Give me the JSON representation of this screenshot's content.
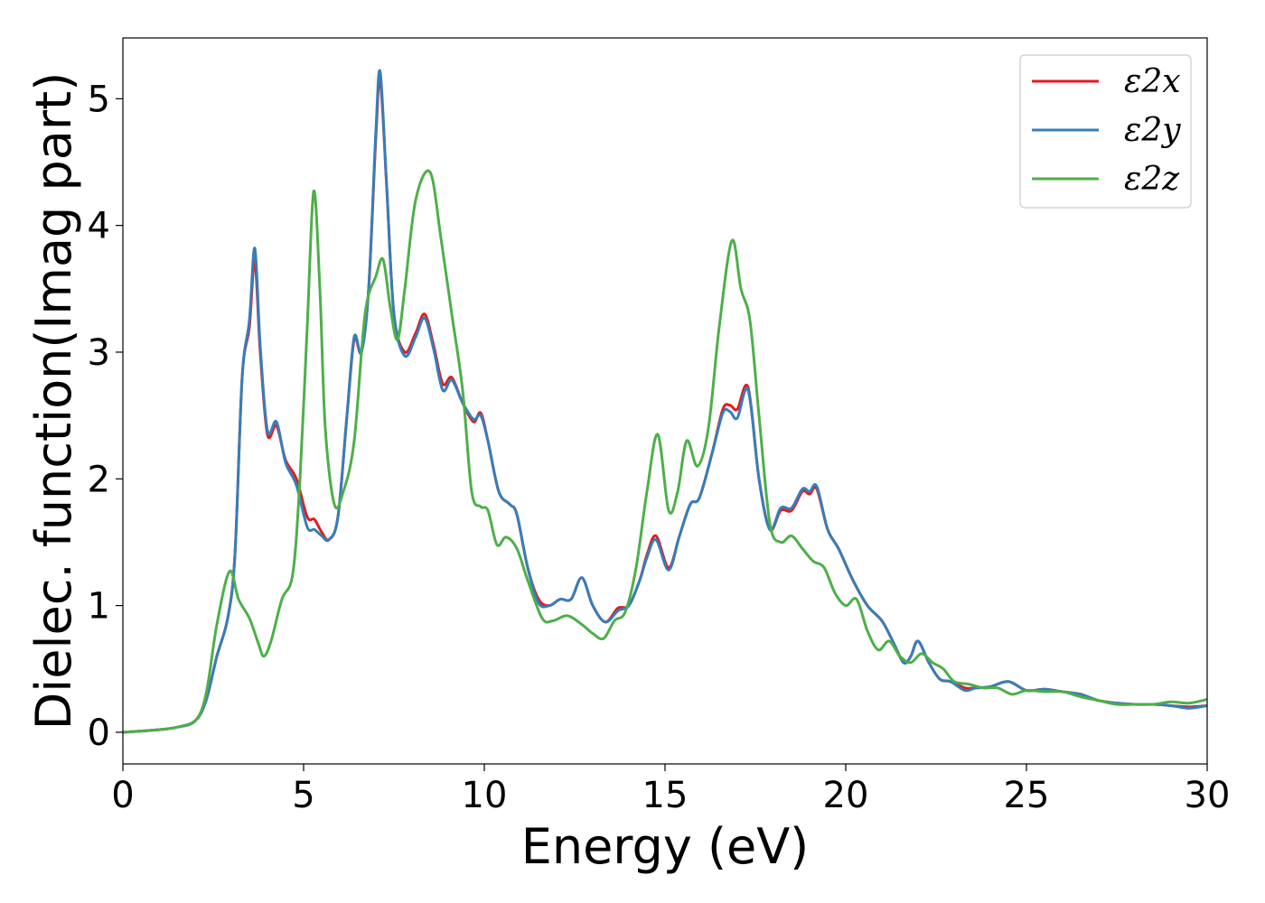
{
  "chart_data": {
    "type": "line",
    "xlabel": "Energy (eV)",
    "ylabel": "Dielec. function(Imag part)",
    "xlim": [
      0,
      30
    ],
    "ylim": [
      -0.25,
      5.48
    ],
    "xticks": [
      0,
      5,
      10,
      15,
      20,
      25,
      30
    ],
    "yticks": [
      0,
      1,
      2,
      3,
      4,
      5
    ],
    "grid": false,
    "legend_position": "top-right",
    "series": [
      {
        "name": "ε2x",
        "color": "#e41a1c",
        "points": [
          [
            0,
            0
          ],
          [
            1,
            0.02
          ],
          [
            1.5,
            0.04
          ],
          [
            2,
            0.09
          ],
          [
            2.3,
            0.25
          ],
          [
            2.6,
            0.6
          ],
          [
            2.9,
            0.9
          ],
          [
            3.1,
            1.4
          ],
          [
            3.3,
            2.8
          ],
          [
            3.5,
            3.2
          ],
          [
            3.65,
            3.72
          ],
          [
            3.8,
            3.0
          ],
          [
            4.0,
            2.35
          ],
          [
            4.25,
            2.42
          ],
          [
            4.5,
            2.15
          ],
          [
            4.8,
            2.0
          ],
          [
            5.1,
            1.7
          ],
          [
            5.3,
            1.68
          ],
          [
            5.5,
            1.58
          ],
          [
            5.7,
            1.52
          ],
          [
            5.95,
            1.7
          ],
          [
            6.2,
            2.5
          ],
          [
            6.4,
            3.1
          ],
          [
            6.6,
            3.0
          ],
          [
            6.8,
            3.5
          ],
          [
            7.0,
            4.7
          ],
          [
            7.12,
            5.15
          ],
          [
            7.3,
            4.3
          ],
          [
            7.5,
            3.3
          ],
          [
            7.8,
            3.0
          ],
          [
            8.1,
            3.15
          ],
          [
            8.35,
            3.3
          ],
          [
            8.6,
            3.05
          ],
          [
            8.85,
            2.75
          ],
          [
            9.1,
            2.8
          ],
          [
            9.4,
            2.6
          ],
          [
            9.7,
            2.45
          ],
          [
            9.9,
            2.52
          ],
          [
            10.1,
            2.3
          ],
          [
            10.4,
            1.9
          ],
          [
            10.7,
            1.8
          ],
          [
            10.9,
            1.72
          ],
          [
            11.2,
            1.3
          ],
          [
            11.5,
            1.05
          ],
          [
            11.8,
            1.0
          ],
          [
            12.1,
            1.05
          ],
          [
            12.4,
            1.05
          ],
          [
            12.7,
            1.22
          ],
          [
            13.0,
            1.0
          ],
          [
            13.35,
            0.87
          ],
          [
            13.7,
            0.98
          ],
          [
            14.0,
            1.0
          ],
          [
            14.3,
            1.2
          ],
          [
            14.5,
            1.4
          ],
          [
            14.75,
            1.55
          ],
          [
            15.1,
            1.3
          ],
          [
            15.4,
            1.55
          ],
          [
            15.7,
            1.8
          ],
          [
            15.95,
            1.85
          ],
          [
            16.3,
            2.2
          ],
          [
            16.6,
            2.55
          ],
          [
            16.8,
            2.58
          ],
          [
            17.0,
            2.55
          ],
          [
            17.3,
            2.72
          ],
          [
            17.6,
            2.0
          ],
          [
            17.9,
            1.6
          ],
          [
            18.2,
            1.75
          ],
          [
            18.5,
            1.75
          ],
          [
            18.8,
            1.9
          ],
          [
            19.0,
            1.88
          ],
          [
            19.2,
            1.92
          ],
          [
            19.5,
            1.6
          ],
          [
            19.8,
            1.45
          ],
          [
            20.2,
            1.2
          ],
          [
            20.6,
            1.0
          ],
          [
            21.0,
            0.88
          ],
          [
            21.3,
            0.72
          ],
          [
            21.6,
            0.55
          ],
          [
            21.8,
            0.6
          ],
          [
            22.0,
            0.72
          ],
          [
            22.3,
            0.55
          ],
          [
            22.6,
            0.42
          ],
          [
            22.9,
            0.4
          ],
          [
            23.3,
            0.35
          ],
          [
            23.6,
            0.35
          ],
          [
            24.0,
            0.36
          ],
          [
            24.5,
            0.4
          ],
          [
            25.0,
            0.33
          ],
          [
            25.5,
            0.34
          ],
          [
            26.0,
            0.32
          ],
          [
            26.5,
            0.3
          ],
          [
            27.0,
            0.25
          ],
          [
            27.5,
            0.23
          ],
          [
            28.0,
            0.22
          ],
          [
            28.5,
            0.22
          ],
          [
            29.0,
            0.21
          ],
          [
            29.5,
            0.2
          ],
          [
            30,
            0.21
          ]
        ]
      },
      {
        "name": "ε2y",
        "color": "#377eb8",
        "points": [
          [
            0,
            0
          ],
          [
            1,
            0.02
          ],
          [
            1.5,
            0.04
          ],
          [
            2,
            0.09
          ],
          [
            2.3,
            0.25
          ],
          [
            2.6,
            0.6
          ],
          [
            2.9,
            0.9
          ],
          [
            3.1,
            1.4
          ],
          [
            3.3,
            2.8
          ],
          [
            3.5,
            3.25
          ],
          [
            3.65,
            3.82
          ],
          [
            3.8,
            3.05
          ],
          [
            4.0,
            2.38
          ],
          [
            4.25,
            2.45
          ],
          [
            4.5,
            2.13
          ],
          [
            4.8,
            1.95
          ],
          [
            5.1,
            1.62
          ],
          [
            5.3,
            1.6
          ],
          [
            5.5,
            1.55
          ],
          [
            5.7,
            1.52
          ],
          [
            5.95,
            1.7
          ],
          [
            6.2,
            2.5
          ],
          [
            6.4,
            3.12
          ],
          [
            6.6,
            3.0
          ],
          [
            6.8,
            3.5
          ],
          [
            7.0,
            4.75
          ],
          [
            7.12,
            5.21
          ],
          [
            7.3,
            4.3
          ],
          [
            7.5,
            3.3
          ],
          [
            7.8,
            2.97
          ],
          [
            8.1,
            3.12
          ],
          [
            8.35,
            3.27
          ],
          [
            8.6,
            3.02
          ],
          [
            8.85,
            2.7
          ],
          [
            9.1,
            2.78
          ],
          [
            9.4,
            2.6
          ],
          [
            9.7,
            2.47
          ],
          [
            9.9,
            2.5
          ],
          [
            10.1,
            2.3
          ],
          [
            10.4,
            1.9
          ],
          [
            10.7,
            1.8
          ],
          [
            10.9,
            1.72
          ],
          [
            11.2,
            1.3
          ],
          [
            11.5,
            1.02
          ],
          [
            11.8,
            1.0
          ],
          [
            12.1,
            1.05
          ],
          [
            12.4,
            1.05
          ],
          [
            12.7,
            1.22
          ],
          [
            13.0,
            1.0
          ],
          [
            13.35,
            0.87
          ],
          [
            13.7,
            0.96
          ],
          [
            14.0,
            1.0
          ],
          [
            14.3,
            1.2
          ],
          [
            14.5,
            1.38
          ],
          [
            14.75,
            1.52
          ],
          [
            15.1,
            1.28
          ],
          [
            15.4,
            1.55
          ],
          [
            15.7,
            1.8
          ],
          [
            15.95,
            1.85
          ],
          [
            16.3,
            2.2
          ],
          [
            16.6,
            2.52
          ],
          [
            16.8,
            2.53
          ],
          [
            17.0,
            2.48
          ],
          [
            17.3,
            2.7
          ],
          [
            17.6,
            2.0
          ],
          [
            17.9,
            1.6
          ],
          [
            18.2,
            1.77
          ],
          [
            18.5,
            1.77
          ],
          [
            18.8,
            1.92
          ],
          [
            19.0,
            1.9
          ],
          [
            19.2,
            1.94
          ],
          [
            19.5,
            1.6
          ],
          [
            19.8,
            1.45
          ],
          [
            20.2,
            1.2
          ],
          [
            20.6,
            1.0
          ],
          [
            21.0,
            0.88
          ],
          [
            21.3,
            0.72
          ],
          [
            21.6,
            0.55
          ],
          [
            21.8,
            0.6
          ],
          [
            22.0,
            0.72
          ],
          [
            22.3,
            0.55
          ],
          [
            22.6,
            0.42
          ],
          [
            22.9,
            0.4
          ],
          [
            23.3,
            0.33
          ],
          [
            23.6,
            0.35
          ],
          [
            24.0,
            0.36
          ],
          [
            24.5,
            0.4
          ],
          [
            25.0,
            0.33
          ],
          [
            25.5,
            0.34
          ],
          [
            26.0,
            0.32
          ],
          [
            26.5,
            0.3
          ],
          [
            27.0,
            0.25
          ],
          [
            27.5,
            0.23
          ],
          [
            28.0,
            0.22
          ],
          [
            28.5,
            0.22
          ],
          [
            29.0,
            0.21
          ],
          [
            29.5,
            0.19
          ],
          [
            30,
            0.21
          ]
        ]
      },
      {
        "name": "ε2z",
        "color": "#4daf4a",
        "points": [
          [
            0,
            0
          ],
          [
            1,
            0.02
          ],
          [
            1.5,
            0.04
          ],
          [
            2,
            0.09
          ],
          [
            2.3,
            0.3
          ],
          [
            2.6,
            0.85
          ],
          [
            2.95,
            1.27
          ],
          [
            3.2,
            1.05
          ],
          [
            3.5,
            0.9
          ],
          [
            3.75,
            0.7
          ],
          [
            3.9,
            0.6
          ],
          [
            4.1,
            0.72
          ],
          [
            4.4,
            1.05
          ],
          [
            4.7,
            1.25
          ],
          [
            4.9,
            2.0
          ],
          [
            5.1,
            3.2
          ],
          [
            5.28,
            4.27
          ],
          [
            5.45,
            3.5
          ],
          [
            5.6,
            2.4
          ],
          [
            5.85,
            1.8
          ],
          [
            6.1,
            1.9
          ],
          [
            6.4,
            2.3
          ],
          [
            6.7,
            3.3
          ],
          [
            7.0,
            3.6
          ],
          [
            7.2,
            3.73
          ],
          [
            7.4,
            3.35
          ],
          [
            7.6,
            3.1
          ],
          [
            7.8,
            3.5
          ],
          [
            8.1,
            4.2
          ],
          [
            8.5,
            4.42
          ],
          [
            8.8,
            3.9
          ],
          [
            9.1,
            3.3
          ],
          [
            9.4,
            2.7
          ],
          [
            9.65,
            1.9
          ],
          [
            9.9,
            1.78
          ],
          [
            10.1,
            1.75
          ],
          [
            10.35,
            1.48
          ],
          [
            10.6,
            1.54
          ],
          [
            10.9,
            1.45
          ],
          [
            11.2,
            1.2
          ],
          [
            11.6,
            0.9
          ],
          [
            11.9,
            0.88
          ],
          [
            12.3,
            0.92
          ],
          [
            12.7,
            0.85
          ],
          [
            13.0,
            0.78
          ],
          [
            13.3,
            0.74
          ],
          [
            13.6,
            0.88
          ],
          [
            13.9,
            0.95
          ],
          [
            14.2,
            1.3
          ],
          [
            14.5,
            1.9
          ],
          [
            14.8,
            2.35
          ],
          [
            15.1,
            1.75
          ],
          [
            15.35,
            1.9
          ],
          [
            15.6,
            2.3
          ],
          [
            15.9,
            2.1
          ],
          [
            16.2,
            2.4
          ],
          [
            16.5,
            3.2
          ],
          [
            16.85,
            3.88
          ],
          [
            17.1,
            3.5
          ],
          [
            17.35,
            3.25
          ],
          [
            17.6,
            2.5
          ],
          [
            17.9,
            1.65
          ],
          [
            18.2,
            1.5
          ],
          [
            18.5,
            1.55
          ],
          [
            18.8,
            1.45
          ],
          [
            19.1,
            1.35
          ],
          [
            19.4,
            1.3
          ],
          [
            19.7,
            1.1
          ],
          [
            20.0,
            1.0
          ],
          [
            20.3,
            1.05
          ],
          [
            20.6,
            0.8
          ],
          [
            20.9,
            0.65
          ],
          [
            21.2,
            0.72
          ],
          [
            21.5,
            0.6
          ],
          [
            21.8,
            0.55
          ],
          [
            22.1,
            0.62
          ],
          [
            22.4,
            0.55
          ],
          [
            22.7,
            0.5
          ],
          [
            23.0,
            0.4
          ],
          [
            23.4,
            0.38
          ],
          [
            23.8,
            0.35
          ],
          [
            24.2,
            0.35
          ],
          [
            24.6,
            0.3
          ],
          [
            25.0,
            0.33
          ],
          [
            25.5,
            0.32
          ],
          [
            26.0,
            0.32
          ],
          [
            26.5,
            0.28
          ],
          [
            27.0,
            0.25
          ],
          [
            27.5,
            0.22
          ],
          [
            28.0,
            0.22
          ],
          [
            28.5,
            0.22
          ],
          [
            29.0,
            0.24
          ],
          [
            29.5,
            0.23
          ],
          [
            30,
            0.26
          ]
        ]
      }
    ]
  }
}
